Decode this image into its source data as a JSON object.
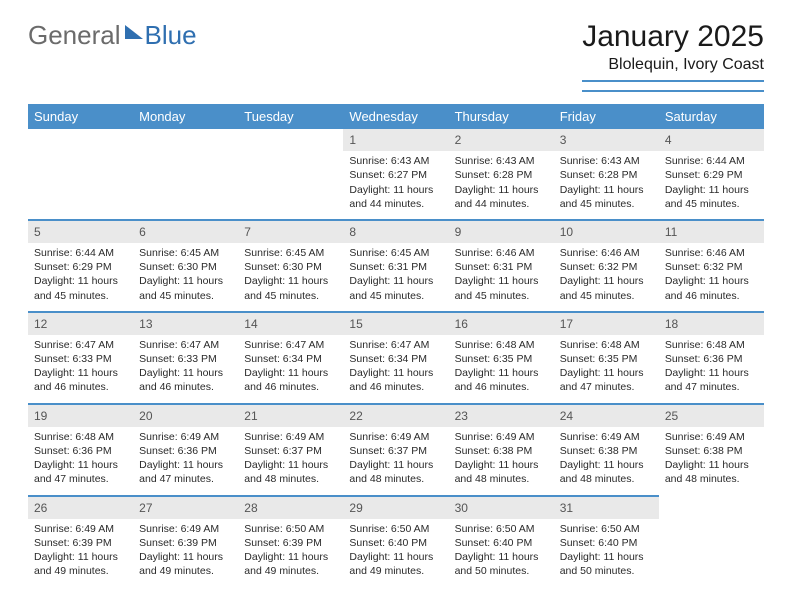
{
  "brand": {
    "general": "General",
    "blue": "Blue"
  },
  "title": "January 2025",
  "location": "Blolequin, Ivory Coast",
  "colors": {
    "header_bg": "#4a8fc9",
    "header_text": "#ffffff",
    "daynum_bg": "#e9e9e9",
    "rule": "#4a8fc9",
    "logo_gray": "#6b6b6b",
    "logo_blue": "#2f6fb0"
  },
  "weekdays": [
    "Sunday",
    "Monday",
    "Tuesday",
    "Wednesday",
    "Thursday",
    "Friday",
    "Saturday"
  ],
  "first_weekday_index": 3,
  "days": [
    {
      "n": 1,
      "sr": "6:43 AM",
      "ss": "6:27 PM",
      "dl": "11 hours and 44 minutes."
    },
    {
      "n": 2,
      "sr": "6:43 AM",
      "ss": "6:28 PM",
      "dl": "11 hours and 44 minutes."
    },
    {
      "n": 3,
      "sr": "6:43 AM",
      "ss": "6:28 PM",
      "dl": "11 hours and 45 minutes."
    },
    {
      "n": 4,
      "sr": "6:44 AM",
      "ss": "6:29 PM",
      "dl": "11 hours and 45 minutes."
    },
    {
      "n": 5,
      "sr": "6:44 AM",
      "ss": "6:29 PM",
      "dl": "11 hours and 45 minutes."
    },
    {
      "n": 6,
      "sr": "6:45 AM",
      "ss": "6:30 PM",
      "dl": "11 hours and 45 minutes."
    },
    {
      "n": 7,
      "sr": "6:45 AM",
      "ss": "6:30 PM",
      "dl": "11 hours and 45 minutes."
    },
    {
      "n": 8,
      "sr": "6:45 AM",
      "ss": "6:31 PM",
      "dl": "11 hours and 45 minutes."
    },
    {
      "n": 9,
      "sr": "6:46 AM",
      "ss": "6:31 PM",
      "dl": "11 hours and 45 minutes."
    },
    {
      "n": 10,
      "sr": "6:46 AM",
      "ss": "6:32 PM",
      "dl": "11 hours and 45 minutes."
    },
    {
      "n": 11,
      "sr": "6:46 AM",
      "ss": "6:32 PM",
      "dl": "11 hours and 46 minutes."
    },
    {
      "n": 12,
      "sr": "6:47 AM",
      "ss": "6:33 PM",
      "dl": "11 hours and 46 minutes."
    },
    {
      "n": 13,
      "sr": "6:47 AM",
      "ss": "6:33 PM",
      "dl": "11 hours and 46 minutes."
    },
    {
      "n": 14,
      "sr": "6:47 AM",
      "ss": "6:34 PM",
      "dl": "11 hours and 46 minutes."
    },
    {
      "n": 15,
      "sr": "6:47 AM",
      "ss": "6:34 PM",
      "dl": "11 hours and 46 minutes."
    },
    {
      "n": 16,
      "sr": "6:48 AM",
      "ss": "6:35 PM",
      "dl": "11 hours and 46 minutes."
    },
    {
      "n": 17,
      "sr": "6:48 AM",
      "ss": "6:35 PM",
      "dl": "11 hours and 47 minutes."
    },
    {
      "n": 18,
      "sr": "6:48 AM",
      "ss": "6:36 PM",
      "dl": "11 hours and 47 minutes."
    },
    {
      "n": 19,
      "sr": "6:48 AM",
      "ss": "6:36 PM",
      "dl": "11 hours and 47 minutes."
    },
    {
      "n": 20,
      "sr": "6:49 AM",
      "ss": "6:36 PM",
      "dl": "11 hours and 47 minutes."
    },
    {
      "n": 21,
      "sr": "6:49 AM",
      "ss": "6:37 PM",
      "dl": "11 hours and 48 minutes."
    },
    {
      "n": 22,
      "sr": "6:49 AM",
      "ss": "6:37 PM",
      "dl": "11 hours and 48 minutes."
    },
    {
      "n": 23,
      "sr": "6:49 AM",
      "ss": "6:38 PM",
      "dl": "11 hours and 48 minutes."
    },
    {
      "n": 24,
      "sr": "6:49 AM",
      "ss": "6:38 PM",
      "dl": "11 hours and 48 minutes."
    },
    {
      "n": 25,
      "sr": "6:49 AM",
      "ss": "6:38 PM",
      "dl": "11 hours and 48 minutes."
    },
    {
      "n": 26,
      "sr": "6:49 AM",
      "ss": "6:39 PM",
      "dl": "11 hours and 49 minutes."
    },
    {
      "n": 27,
      "sr": "6:49 AM",
      "ss": "6:39 PM",
      "dl": "11 hours and 49 minutes."
    },
    {
      "n": 28,
      "sr": "6:50 AM",
      "ss": "6:39 PM",
      "dl": "11 hours and 49 minutes."
    },
    {
      "n": 29,
      "sr": "6:50 AM",
      "ss": "6:40 PM",
      "dl": "11 hours and 49 minutes."
    },
    {
      "n": 30,
      "sr": "6:50 AM",
      "ss": "6:40 PM",
      "dl": "11 hours and 50 minutes."
    },
    {
      "n": 31,
      "sr": "6:50 AM",
      "ss": "6:40 PM",
      "dl": "11 hours and 50 minutes."
    }
  ],
  "labels": {
    "sunrise": "Sunrise:",
    "sunset": "Sunset:",
    "daylight": "Daylight:"
  }
}
